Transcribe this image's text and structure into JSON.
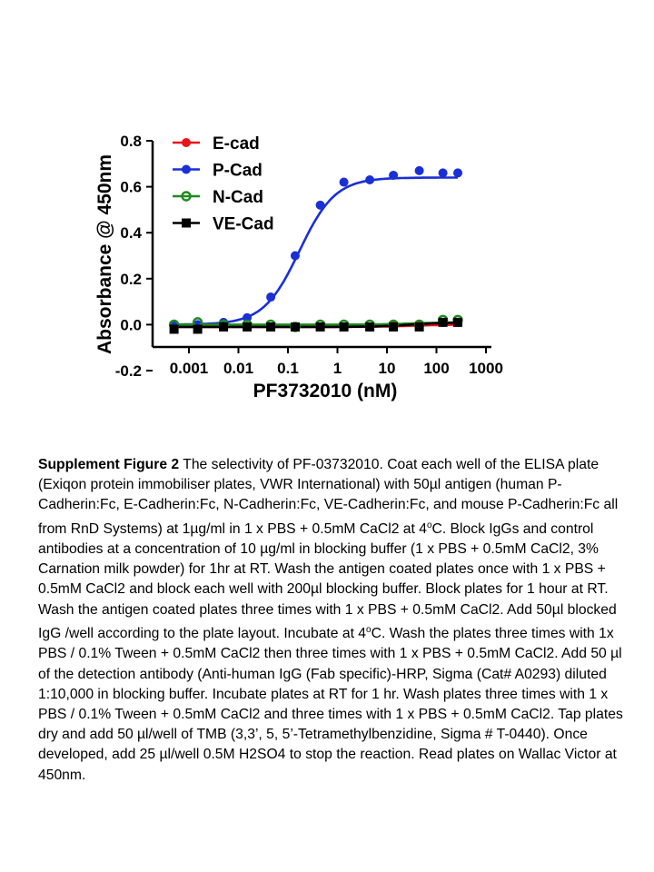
{
  "chart_data": {
    "type": "line",
    "xlabel": "PF3732010 (nM)",
    "ylabel": "Absorbance @ 450nm",
    "x_scale": "log",
    "xlim": [
      0.0003,
      1000
    ],
    "ylim": [
      -0.2,
      0.8
    ],
    "xticks": [
      "0.001",
      "0.01",
      "0.1",
      "1",
      "10",
      "100",
      "1000"
    ],
    "yticks": [
      "-0.2",
      "0.0",
      "0.2",
      "0.4",
      "0.6",
      "0.8"
    ],
    "legend_position": "top-left",
    "series": [
      {
        "name": "E-cad",
        "color": "#e8141b",
        "marker": "circle",
        "x": [
          0.0005,
          0.0015,
          0.005,
          0.015,
          0.045,
          0.14,
          0.45,
          1.35,
          4.5,
          13.5,
          45,
          135,
          270
        ],
        "y": [
          -0.01,
          -0.01,
          -0.01,
          -0.01,
          -0.01,
          -0.01,
          -0.01,
          -0.01,
          -0.01,
          0.0,
          0.0,
          0.01,
          0.01
        ],
        "curve_y": [
          -0.01,
          0.0
        ]
      },
      {
        "name": "P-Cad",
        "color": "#1a2fd6",
        "marker": "circle",
        "x": [
          0.0005,
          0.0015,
          0.005,
          0.015,
          0.045,
          0.14,
          0.45,
          1.35,
          4.5,
          13.5,
          45,
          135,
          270
        ],
        "y": [
          0.0,
          0.0,
          0.01,
          0.03,
          0.12,
          0.3,
          0.52,
          0.62,
          0.63,
          0.65,
          0.67,
          0.66,
          0.66
        ],
        "curve_y": [
          0.0,
          0.64
        ]
      },
      {
        "name": "N-Cad",
        "color": "#1f8a1f",
        "marker": "open-circle",
        "x": [
          0.0005,
          0.0015,
          0.005,
          0.015,
          0.045,
          0.14,
          0.45,
          1.35,
          4.5,
          13.5,
          45,
          135,
          270
        ],
        "y": [
          0.0,
          0.01,
          0.0,
          0.0,
          0.0,
          -0.01,
          0.0,
          0.0,
          0.0,
          0.0,
          0.0,
          0.02,
          0.02
        ],
        "curve_y": [
          0.0,
          0.01
        ]
      },
      {
        "name": "VE-Cad",
        "color": "#000000",
        "marker": "square",
        "x": [
          0.0005,
          0.0015,
          0.005,
          0.015,
          0.045,
          0.14,
          0.45,
          1.35,
          4.5,
          13.5,
          45,
          135,
          270
        ],
        "y": [
          -0.02,
          -0.02,
          -0.01,
          -0.01,
          -0.01,
          -0.01,
          -0.01,
          -0.01,
          -0.01,
          -0.01,
          -0.01,
          0.01,
          0.01
        ],
        "curve_y": [
          -0.01,
          0.01
        ]
      }
    ]
  },
  "caption": {
    "title": "Supplement Figure 2",
    "body": " The selectivity of PF-03732010.  Coat each well of the ELISA plate (Exiqon protein immobiliser plates, VWR International) with 50µl antigen (human P-Cadherin:Fc, E-Cadherin:Fc, N-Cadherin:Fc, VE-Cadherin:Fc, and mouse P-Cadherin:Fc all from RnD Systems) at 1µg/ml in 1 x PBS + 0.5mM CaCl2 at 4",
    "sup1": "o",
    "body2": "C. Block IgGs and control antibodies at a concentration of 10 µg/ml in blocking buffer (1 x PBS + 0.5mM CaCl2, 3% Carnation milk powder) for 1hr at RT. Wash the antigen coated plates once with 1 x PBS + 0.5mM CaCl2 and block each well with 200µl blocking buffer. Block plates for 1 hour at RT. Wash the antigen coated plates three times with 1 x PBS + 0.5mM CaCl2. Add 50µl blocked IgG /well according to the plate layout. Incubate at 4",
    "sup2": "o",
    "body3": "C. Wash the plates three times with 1x PBS / 0.1% Tween + 0.5mM CaCl2 then three times with 1 x PBS + 0.5mM CaCl2. Add 50 µl of the detection antibody (Anti-human IgG (Fab specific)-HRP, Sigma (Cat# A0293) diluted 1:10,000 in blocking buffer. Incubate plates at RT for 1 hr. Wash plates three times with 1 x PBS / 0.1% Tween + 0.5mM CaCl2 and three times with 1 x PBS + 0.5mM CaCl2. Tap plates dry and add 50 µl/well of TMB (3,3’, 5, 5’-Tetramethylbenzidine, Sigma # T-0440). Once developed, add 25 µl/well 0.5M H2SO4 to stop the reaction. Read plates on Wallac Victor at 450nm."
  }
}
